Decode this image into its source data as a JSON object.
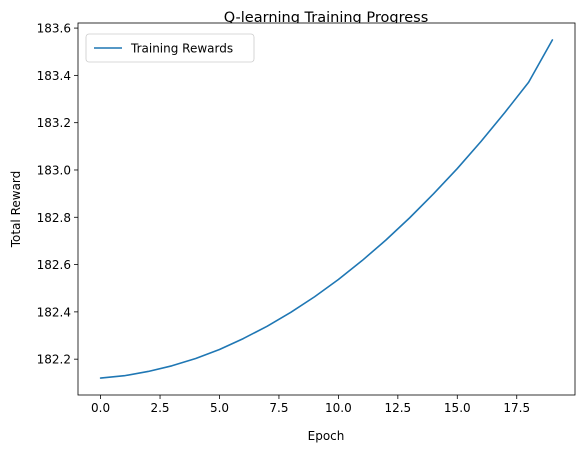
{
  "chart_data": {
    "type": "line",
    "title": "Q-learning Training Progress",
    "xlabel": "Epoch",
    "ylabel": "Total Reward",
    "xlim": [
      -0.95,
      19.95
    ],
    "ylim": [
      182.0485,
      183.6215
    ],
    "x_ticks": [
      0.0,
      2.5,
      5.0,
      7.5,
      10.0,
      12.5,
      15.0,
      17.5
    ],
    "x_tick_labels": [
      "0.0",
      "2.5",
      "5.0",
      "7.5",
      "10.0",
      "12.5",
      "15.0",
      "17.5"
    ],
    "y_ticks": [
      182.2,
      182.4,
      182.6,
      182.8,
      183.0,
      183.2,
      183.4,
      183.6
    ],
    "y_tick_labels": [
      "182.2",
      "182.4",
      "182.6",
      "182.8",
      "183.0",
      "183.2",
      "183.4",
      "183.6"
    ],
    "grid": false,
    "legend_position": "top-left",
    "series": [
      {
        "name": "Training Rewards",
        "color": "#1f77b4",
        "x": [
          0,
          1,
          2,
          3,
          4,
          5,
          6,
          7,
          8,
          9,
          10,
          11,
          12,
          13,
          14,
          15,
          16,
          17,
          18,
          19
        ],
        "y": [
          182.12,
          182.13,
          182.148,
          182.172,
          182.203,
          182.241,
          182.287,
          182.339,
          182.398,
          182.464,
          182.537,
          182.617,
          182.704,
          182.798,
          182.899,
          183.006,
          183.121,
          183.243,
          183.371,
          183.55
        ]
      }
    ]
  }
}
